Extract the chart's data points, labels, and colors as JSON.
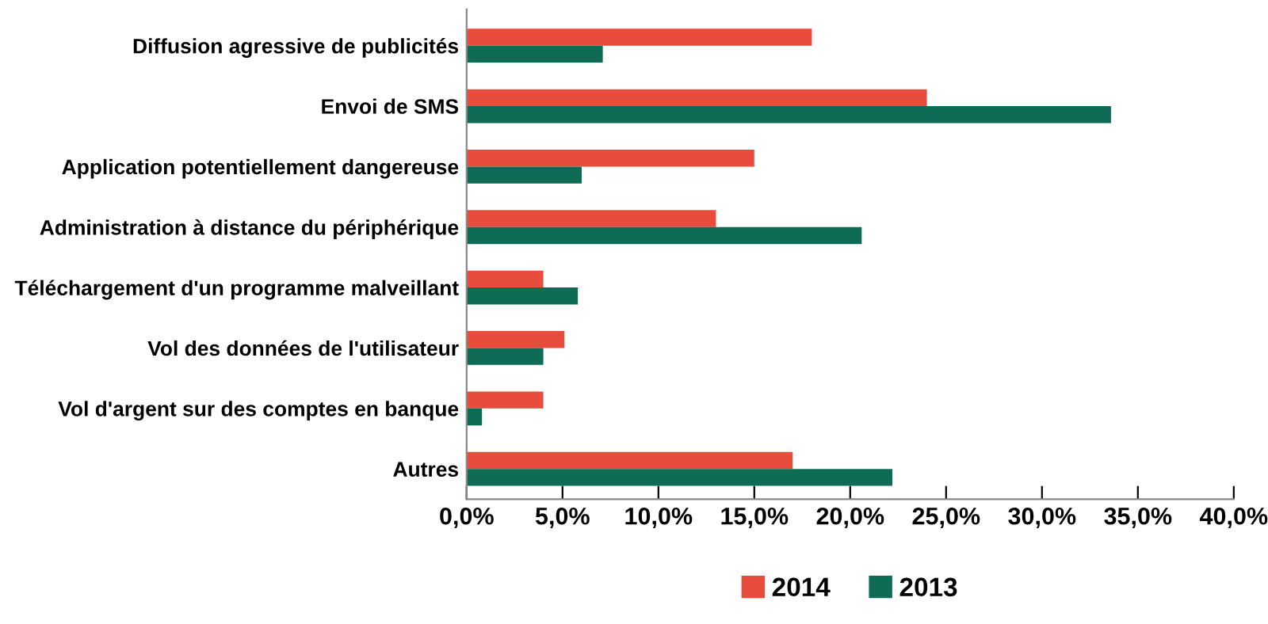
{
  "chart_data": {
    "type": "bar",
    "orientation": "horizontal",
    "categories": [
      "Diffusion agressive de publicités",
      "Envoi de SMS",
      "Application potentiellement dangereuse",
      "Administration à distance du périphérique",
      "Téléchargement d'un programme malveillant",
      "Vol des données de l'utilisateur",
      "Vol d'argent sur des comptes en banque",
      "Autres"
    ],
    "series": [
      {
        "name": "2014",
        "color": "#e84c3d",
        "values": [
          18.0,
          24.0,
          15.0,
          13.0,
          4.0,
          5.1,
          4.0,
          17.0
        ]
      },
      {
        "name": "2013",
        "color": "#0e6b55",
        "values": [
          7.1,
          33.6,
          6.0,
          20.6,
          5.8,
          4.0,
          0.8,
          22.2
        ]
      }
    ],
    "xlim": [
      0,
      40
    ],
    "xticks": [
      {
        "value": 0,
        "label": "0,0%"
      },
      {
        "value": 5,
        "label": "5,0%"
      },
      {
        "value": 10,
        "label": "10,0%"
      },
      {
        "value": 15,
        "label": "15,0%"
      },
      {
        "value": 20,
        "label": "20,0%"
      },
      {
        "value": 25,
        "label": "25,0%"
      },
      {
        "value": 30,
        "label": "30,0%"
      },
      {
        "value": 35,
        "label": "35,0%"
      },
      {
        "value": 40,
        "label": "40,0%"
      }
    ],
    "grid": false,
    "legend": "bottom"
  }
}
